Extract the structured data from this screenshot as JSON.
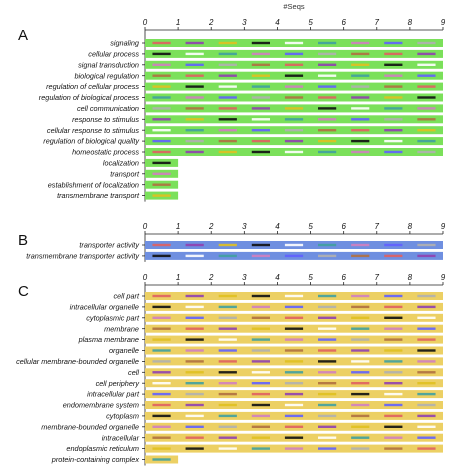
{
  "header": {
    "axis_title": "#Seqs"
  },
  "chart_data": [
    {
      "type": "bar",
      "panel_label": "A",
      "xlim": [
        0,
        9
      ],
      "ticks": [
        0,
        1,
        2,
        3,
        4,
        5,
        6,
        7,
        8,
        9
      ],
      "bar_color": "#7be05a",
      "categories": [
        "signaling",
        "cellular process",
        "signal transduction",
        "biological regulation",
        "regulation of cellular process",
        "regulation of biological process",
        "cell communication",
        "response to stimulus",
        "cellular response to stimulus",
        "regulation of biological quality",
        "homeostatic process",
        "localization",
        "transport",
        "establishment of localization",
        "transmembrane transport"
      ],
      "values": [
        9,
        9,
        9,
        9,
        9,
        9,
        9,
        9,
        9,
        9,
        9,
        1,
        1,
        1,
        1
      ],
      "show_axis_title": true
    },
    {
      "type": "bar",
      "panel_label": "B",
      "xlim": [
        0,
        9
      ],
      "ticks": [
        0,
        1,
        2,
        3,
        4,
        5,
        6,
        7,
        8,
        9
      ],
      "bar_color": "#6f8fe0",
      "categories": [
        "transporter activity",
        "transmembrane transporter activity"
      ],
      "values": [
        9,
        9
      ],
      "show_axis_title": false
    },
    {
      "type": "bar",
      "panel_label": "C",
      "xlim": [
        0,
        9
      ],
      "ticks": [
        0,
        1,
        2,
        3,
        4,
        5,
        6,
        7,
        8,
        9
      ],
      "bar_color": "#ecd064",
      "categories": [
        "cell part",
        "intracellular organelle",
        "cytoplasmic part",
        "membrane",
        "plasma membrane",
        "organelle",
        "cellular membrane-bounded organelle",
        "cell",
        "cell periphery",
        "intracellular part",
        "endomembrane system",
        "cytoplasm",
        "membrane-bounded organelle",
        "intracellular",
        "endoplasmic reticulum",
        "protein-containing complex"
      ],
      "values": [
        9,
        9,
        9,
        9,
        9,
        9,
        9,
        9,
        9,
        9,
        9,
        9,
        9,
        9,
        9,
        1
      ],
      "show_axis_title": false
    }
  ],
  "segment_colors": [
    "#e06060",
    "#9040b0",
    "#e0c020",
    "#101010",
    "#ffffff",
    "#40a0a0",
    "#d080c0",
    "#6060ff",
    "#b0b0b0",
    "#b07040"
  ]
}
